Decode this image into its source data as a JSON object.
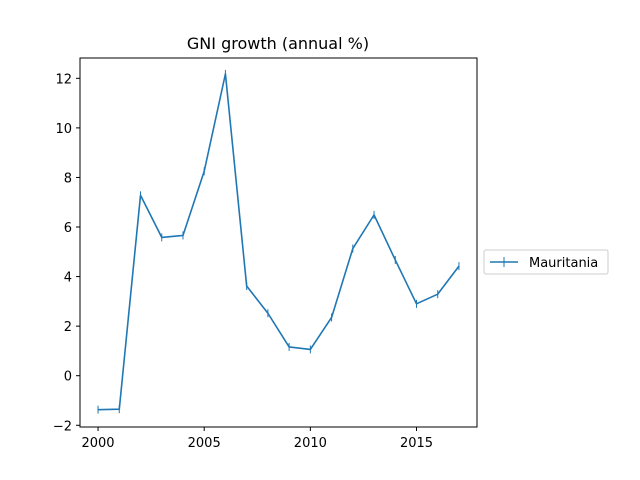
{
  "chart_data": {
    "type": "line",
    "title": "GNI growth (annual %)",
    "xlabel": "",
    "ylabel": "",
    "xlim": [
      1999.15,
      2017.85
    ],
    "ylim": [
      -2.07,
      12.82
    ],
    "xticks": [
      2000,
      2005,
      2010,
      2015
    ],
    "yticks": [
      -2,
      0,
      2,
      4,
      6,
      8,
      10,
      12
    ],
    "grid": false,
    "legend_position": "right",
    "x": [
      2000,
      2001,
      2002,
      2003,
      2004,
      2005,
      2006,
      2007,
      2008,
      2009,
      2010,
      2011,
      2012,
      2013,
      2014,
      2015,
      2016,
      2017
    ],
    "series": [
      {
        "name": "Mauritania",
        "color": "#1f77b4",
        "values": [
          -1.37,
          -1.35,
          7.28,
          5.58,
          5.66,
          8.25,
          12.18,
          3.62,
          2.52,
          1.16,
          1.06,
          2.35,
          5.13,
          6.49,
          4.67,
          2.9,
          3.29,
          4.42
        ]
      }
    ]
  }
}
